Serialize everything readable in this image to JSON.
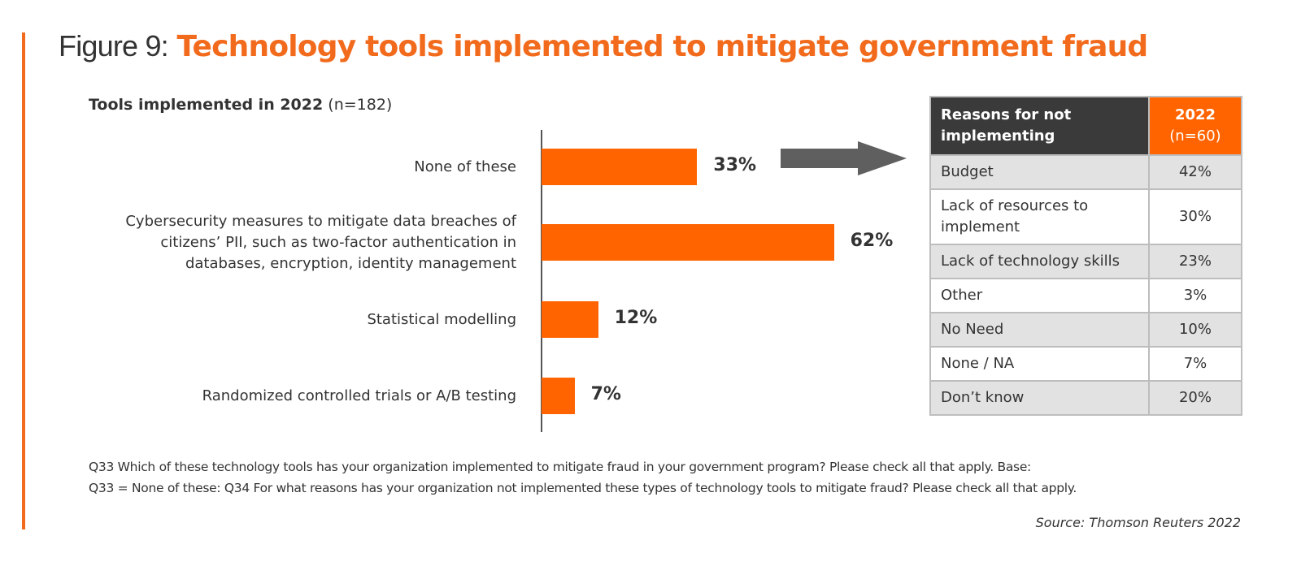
{
  "title": {
    "prefix": "Figure 9:",
    "main": "Technology tools implemented to mitigate government fraud"
  },
  "chart_data": {
    "type": "bar",
    "orientation": "horizontal",
    "title": "Tools implemented in 2022",
    "subtitle_n": "(n=182)",
    "categories": [
      "None of these",
      "Cybersecurity measures to mitigate data breaches of citizens’ PII, such as two-factor authentication in databases, encryption, identity management",
      "Statistical modelling",
      "Randomized controlled trials or A/B testing"
    ],
    "category_lines": [
      [
        "None of these"
      ],
      [
        "Cybersecurity measures to mitigate data breaches of",
        "citizens’ PII, such as two-factor authentication in",
        "databases, encryption, identity management"
      ],
      [
        "Statistical modelling"
      ],
      [
        "Randomized controlled trials or A/B testing"
      ]
    ],
    "values": [
      33,
      62,
      12,
      7
    ],
    "labels": [
      "33%",
      "62%",
      "12%",
      "7%"
    ],
    "unit": "%",
    "xlim": [
      0,
      100
    ],
    "color": "#ff6400"
  },
  "table": {
    "header": {
      "col1": "Reasons for not implementing",
      "col1_lines": [
        "Reasons for not",
        "implementing"
      ],
      "year": "2022",
      "n": "(n=60)"
    },
    "rows": [
      {
        "reason": "Budget",
        "value": "42%"
      },
      {
        "reason": "Lack of resources to implement",
        "lines": [
          "Lack of resources to",
          "implement"
        ],
        "value": "30%"
      },
      {
        "reason": "Lack of technology skills",
        "value": "23%"
      },
      {
        "reason": "Other",
        "value": "3%"
      },
      {
        "reason": "No Need",
        "value": "10%"
      },
      {
        "reason": "None / NA",
        "value": "7%"
      },
      {
        "reason": "Don’t know",
        "value": "20%"
      }
    ]
  },
  "footnote": {
    "line1": "Q33 Which of these technology tools has your organization implemented to mitigate fraud in your government program? Please check all that apply. Base:",
    "line2": "Q33 = None of these: Q34 For what reasons has your organization not implemented these types of technology tools to mitigate fraud? Please check all that apply."
  },
  "source": "Source: Thomson Reuters 2022",
  "colors": {
    "accent": "#f26b1d",
    "bar": "#ff6400",
    "header_dark": "#3a3a3a",
    "arrow": "#5f5f5f",
    "row_gray": "#e2e2e2"
  }
}
